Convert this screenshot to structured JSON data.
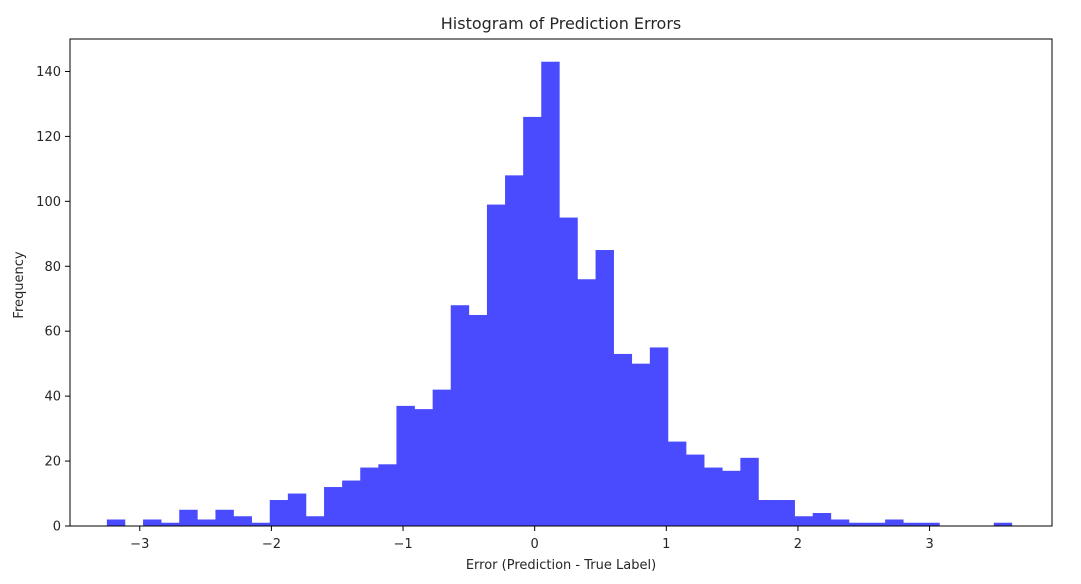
{
  "chart_data": {
    "type": "bar",
    "title": "Histogram of Prediction Errors",
    "xlabel": "Error (Prediction - True Label)",
    "ylabel": "Frequency",
    "xlim": [
      -3.53,
      3.93
    ],
    "ylim": [
      0,
      150
    ],
    "xticks": [
      -3,
      -2,
      -1,
      0,
      1,
      2,
      3
    ],
    "xtick_labels": [
      "−3",
      "−2",
      "−1",
      "0",
      "1",
      "2",
      "3"
    ],
    "yticks": [
      0,
      20,
      40,
      60,
      80,
      100,
      120,
      140
    ],
    "ytick_labels": [
      "0",
      "20",
      "40",
      "60",
      "80",
      "100",
      "120",
      "140"
    ],
    "bin_start": -3.25,
    "bin_width": 0.1375,
    "values": [
      2,
      0,
      2,
      1,
      5,
      2,
      5,
      3,
      1,
      8,
      10,
      3,
      12,
      14,
      18,
      19,
      37,
      36,
      42,
      68,
      65,
      99,
      108,
      126,
      143,
      95,
      76,
      85,
      53,
      50,
      55,
      26,
      22,
      18,
      17,
      21,
      8,
      8,
      3,
      4,
      2,
      1,
      1,
      2,
      1,
      1,
      0,
      0,
      0,
      1
    ],
    "bar_color": "#4a4aff",
    "grid": false
  }
}
